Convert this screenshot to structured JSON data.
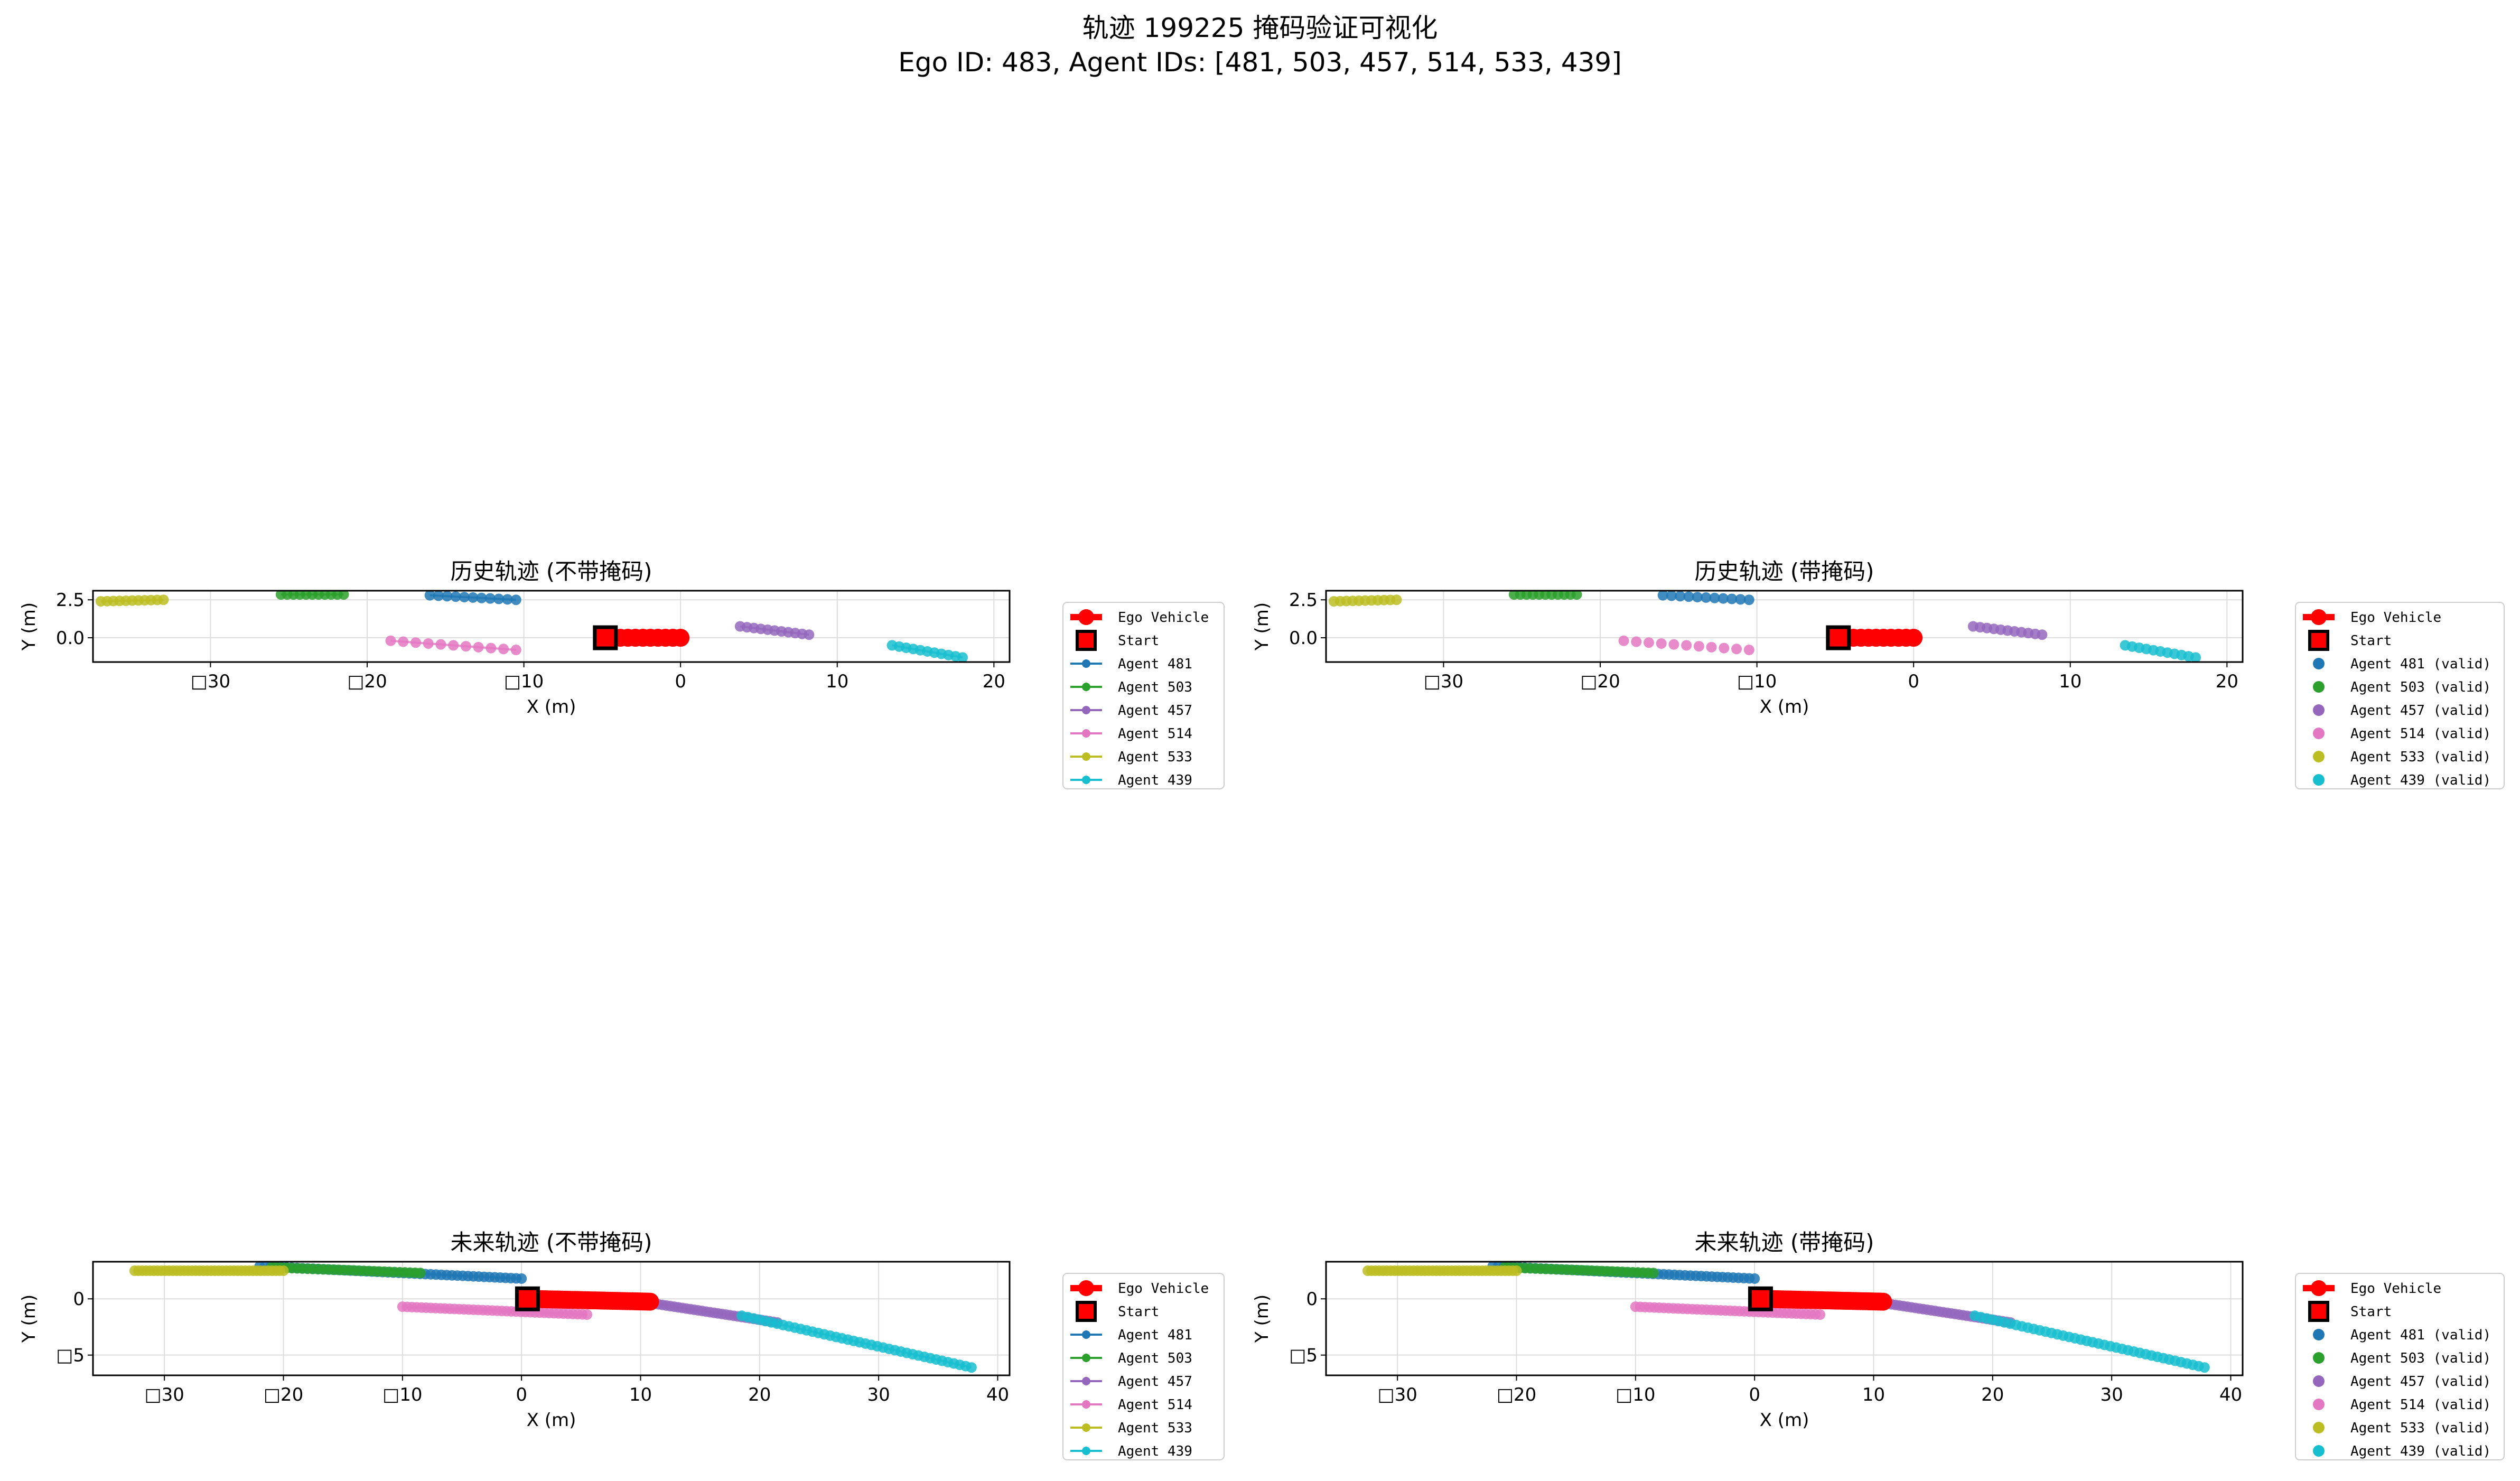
{
  "suptitle": {
    "line1": "轨迹 199225 掩码验证可视化",
    "line2": "Ego ID: 483, Agent IDs: [481, 503, 457, 514, 533, 439]"
  },
  "colors": {
    "ego": "#ff0000",
    "agents": [
      "#1f77b4",
      "#2ca02c",
      "#9467bd",
      "#e377c2",
      "#bcbd22",
      "#17becf"
    ]
  },
  "chart_data": [
    {
      "type": "scatter",
      "title": "历史轨迹 (不带掩码)",
      "xlabel": "X (m)",
      "ylabel": "Y (m)",
      "xlim": [
        -37.5,
        21
      ],
      "ylim": [
        -1.6,
        3.1
      ],
      "xticks": [
        -30,
        -20,
        -10,
        0,
        10,
        20
      ],
      "xtick_labels": [
        "□30",
        "□20",
        "□10",
        "0",
        "10",
        "20"
      ],
      "yticks": [
        0,
        2.5
      ],
      "ytick_labels": [
        "0.0",
        "2.5"
      ],
      "grid": true,
      "legend_placement": "outside-right",
      "legend": [
        "Ego Vehicle",
        "Start",
        "Agent 481",
        "Agent 503",
        "Agent 457",
        "Agent 514",
        "Agent 533",
        "Agent 439"
      ],
      "legend_style": "line",
      "ego": {
        "x_start": -4.8,
        "x_end": 0,
        "y_start": 0,
        "y_end": 0,
        "n": 11
      },
      "start": {
        "x": -4.8,
        "y": 0
      },
      "agents": [
        {
          "x_start": -16,
          "x_end": -10.5,
          "y_start": 2.8,
          "y_end": 2.5,
          "n": 11
        },
        {
          "x_start": -25.5,
          "x_end": -21.5,
          "y_start": 2.85,
          "y_end": 2.85,
          "n": 11
        },
        {
          "x_start": 3.8,
          "x_end": 8.2,
          "y_start": 0.75,
          "y_end": 0.2,
          "n": 11
        },
        {
          "x_start": -18.5,
          "x_end": -10.5,
          "y_start": -0.2,
          "y_end": -0.8,
          "n": 11
        },
        {
          "x_start": -37,
          "x_end": -33,
          "y_start": 2.4,
          "y_end": 2.5,
          "n": 11
        },
        {
          "x_start": 13.5,
          "x_end": 18,
          "y_start": -0.5,
          "y_end": -1.3,
          "n": 11
        }
      ]
    },
    {
      "type": "scatter",
      "title": "历史轨迹 (带掩码)",
      "xlabel": "X (m)",
      "ylabel": "Y (m)",
      "xlim": [
        -37.5,
        21
      ],
      "ylim": [
        -1.6,
        3.1
      ],
      "xticks": [
        -30,
        -20,
        -10,
        0,
        10,
        20
      ],
      "xtick_labels": [
        "□30",
        "□20",
        "□10",
        "0",
        "10",
        "20"
      ],
      "yticks": [
        0,
        2.5
      ],
      "ytick_labels": [
        "0.0",
        "2.5"
      ],
      "grid": true,
      "legend_placement": "outside-right",
      "legend": [
        "Ego Vehicle",
        "Start",
        "Agent 481 (valid)",
        "Agent 503 (valid)",
        "Agent 457 (valid)",
        "Agent 514 (valid)",
        "Agent 533 (valid)",
        "Agent 439 (valid)"
      ],
      "legend_style": "dot",
      "ego": {
        "x_start": -4.8,
        "x_end": 0,
        "y_start": 0,
        "y_end": 0,
        "n": 11
      },
      "start": {
        "x": -4.8,
        "y": 0
      },
      "agents": [
        {
          "x_start": -16,
          "x_end": -10.5,
          "y_start": 2.8,
          "y_end": 2.5,
          "n": 11
        },
        {
          "x_start": -25.5,
          "x_end": -21.5,
          "y_start": 2.85,
          "y_end": 2.85,
          "n": 11
        },
        {
          "x_start": 3.8,
          "x_end": 8.2,
          "y_start": 0.75,
          "y_end": 0.2,
          "n": 11
        },
        {
          "x_start": -18.5,
          "x_end": -10.5,
          "y_start": -0.2,
          "y_end": -0.8,
          "n": 11
        },
        {
          "x_start": -37,
          "x_end": -33,
          "y_start": 2.4,
          "y_end": 2.5,
          "n": 11
        },
        {
          "x_start": 13.5,
          "x_end": 18,
          "y_start": -0.5,
          "y_end": -1.3,
          "n": 11
        }
      ]
    },
    {
      "type": "scatter",
      "title": "未来轨迹 (不带掩码)",
      "xlabel": "X (m)",
      "ylabel": "Y (m)",
      "xlim": [
        -36,
        41
      ],
      "ylim": [
        -6.8,
        3.3
      ],
      "xticks": [
        -30,
        -20,
        -10,
        0,
        10,
        20,
        30,
        40
      ],
      "xtick_labels": [
        "□30",
        "□20",
        "□10",
        "0",
        "10",
        "20",
        "30",
        "40"
      ],
      "yticks": [
        -5,
        0
      ],
      "ytick_labels": [
        "□5",
        "0"
      ],
      "grid": true,
      "legend_placement": "outside-right",
      "legend": [
        "Ego Vehicle",
        "Start",
        "Agent 481",
        "Agent 503",
        "Agent 457",
        "Agent 514",
        "Agent 533",
        "Agent 439"
      ],
      "legend_style": "line",
      "ego": {
        "x_start": 0.5,
        "x_end": 10.8,
        "y_start": 0,
        "y_end": -0.25,
        "n": 50
      },
      "start": {
        "x": 0.5,
        "y": 0
      },
      "agents": [
        {
          "x_start": -22,
          "x_end": 0,
          "y_start": 2.9,
          "y_end": 1.8,
          "n": 50
        },
        {
          "x_start": -21,
          "x_end": -8.5,
          "y_start": 2.8,
          "y_end": 2.3,
          "n": 30
        },
        {
          "x_start": 8.5,
          "x_end": 21.5,
          "y_start": 0,
          "y_end": -2.1,
          "n": 40
        },
        {
          "x_start": -10,
          "x_end": 5.5,
          "y_start": -0.7,
          "y_end": -1.4,
          "n": 40
        },
        {
          "x_start": -32.5,
          "x_end": -20,
          "y_start": 2.5,
          "y_end": 2.5,
          "n": 40
        },
        {
          "x_start": 18.5,
          "x_end": 37.8,
          "y_start": -1.5,
          "y_end": -6.1,
          "n": 40
        }
      ]
    },
    {
      "type": "scatter",
      "title": "未来轨迹 (带掩码)",
      "xlabel": "X (m)",
      "ylabel": "Y (m)",
      "xlim": [
        -36,
        41
      ],
      "ylim": [
        -6.8,
        3.3
      ],
      "xticks": [
        -30,
        -20,
        -10,
        0,
        10,
        20,
        30,
        40
      ],
      "xtick_labels": [
        "□30",
        "□20",
        "□10",
        "0",
        "10",
        "20",
        "30",
        "40"
      ],
      "yticks": [
        -5,
        0
      ],
      "ytick_labels": [
        "□5",
        "0"
      ],
      "grid": true,
      "legend_placement": "outside-right",
      "legend": [
        "Ego Vehicle",
        "Start",
        "Agent 481 (valid)",
        "Agent 503 (valid)",
        "Agent 457 (valid)",
        "Agent 514 (valid)",
        "Agent 533 (valid)",
        "Agent 439 (valid)"
      ],
      "legend_style": "dot",
      "ego": {
        "x_start": 0.5,
        "x_end": 10.8,
        "y_start": 0,
        "y_end": -0.25,
        "n": 50
      },
      "start": {
        "x": 0.5,
        "y": 0
      },
      "agents": [
        {
          "x_start": -22,
          "x_end": 0,
          "y_start": 2.9,
          "y_end": 1.8,
          "n": 50
        },
        {
          "x_start": -21,
          "x_end": -8.5,
          "y_start": 2.8,
          "y_end": 2.3,
          "n": 30
        },
        {
          "x_start": 8.5,
          "x_end": 21.5,
          "y_start": 0,
          "y_end": -2.1,
          "n": 40
        },
        {
          "x_start": -10,
          "x_end": 5.5,
          "y_start": -0.7,
          "y_end": -1.4,
          "n": 40
        },
        {
          "x_start": -32.5,
          "x_end": -20,
          "y_start": 2.5,
          "y_end": 2.5,
          "n": 40
        },
        {
          "x_start": 18.5,
          "x_end": 37.8,
          "y_start": -1.5,
          "y_end": -6.1,
          "n": 40
        }
      ]
    }
  ]
}
